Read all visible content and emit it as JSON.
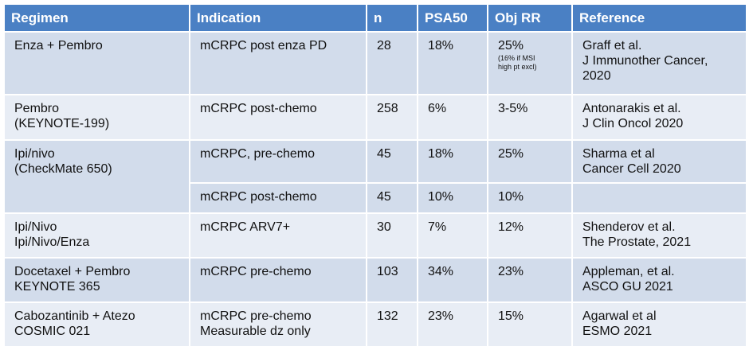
{
  "table": {
    "headers": [
      "Regimen",
      "Indication",
      "n",
      "PSA50",
      "Obj RR",
      "Reference"
    ],
    "rows": [
      {
        "regimen": [
          "Enza + Pembro"
        ],
        "indication": [
          "mCRPC post enza PD"
        ],
        "n": "28",
        "psa50": "18%",
        "objrr": "25%",
        "objrr_note": [
          "(16% if MSI",
          "high pt excl)"
        ],
        "reference": [
          "Graff et al.",
          "J Immunother Cancer,",
          "2020"
        ]
      },
      {
        "regimen": [
          "Pembro",
          "(KEYNOTE-199)"
        ],
        "indication": [
          "mCRPC post-chemo"
        ],
        "n": "258",
        "psa50": "6%",
        "objrr": "3-5%",
        "reference": [
          "Antonarakis et al.",
          "J Clin Oncol 2020"
        ]
      },
      {
        "regimen": [
          "Ipi/nivo",
          "(CheckMate 650)"
        ],
        "indication": [
          "mCRPC, pre-chemo"
        ],
        "n": "45",
        "psa50": "18%",
        "objrr": "25%",
        "reference": [
          "Sharma et al",
          "Cancer Cell 2020"
        ]
      },
      {
        "indication": [
          "mCRPC post-chemo"
        ],
        "n": "45",
        "psa50": "10%",
        "objrr": "10%",
        "reference": []
      },
      {
        "regimen": [
          "Ipi/Nivo",
          "Ipi/Nivo/Enza"
        ],
        "indication": [
          "mCRPC ARV7+"
        ],
        "n": "30",
        "psa50": "7%",
        "objrr": "12%",
        "reference": [
          "Shenderov et al.",
          "The Prostate, 2021"
        ]
      },
      {
        "regimen": [
          "Docetaxel + Pembro",
          "KEYNOTE 365"
        ],
        "indication": [
          "mCRPC pre-chemo"
        ],
        "n": "103",
        "psa50": "34%",
        "objrr": "23%",
        "reference": [
          "Appleman, et al.",
          "ASCO GU 2021"
        ]
      },
      {
        "regimen": [
          "Cabozantinib + Atezo",
          "COSMIC 021"
        ],
        "indication": [
          "mCRPC pre-chemo",
          "Measurable dz only"
        ],
        "n": "132",
        "psa50": "23%",
        "objrr": "15%",
        "reference": [
          "Agarwal et al",
          "ESMO 2021"
        ]
      }
    ]
  },
  "colors": {
    "header_bg": "#4a80c4",
    "header_text": "#ffffff",
    "row_odd": "#d2dceb",
    "row_even": "#e8edf5",
    "border": "#ffffff"
  }
}
